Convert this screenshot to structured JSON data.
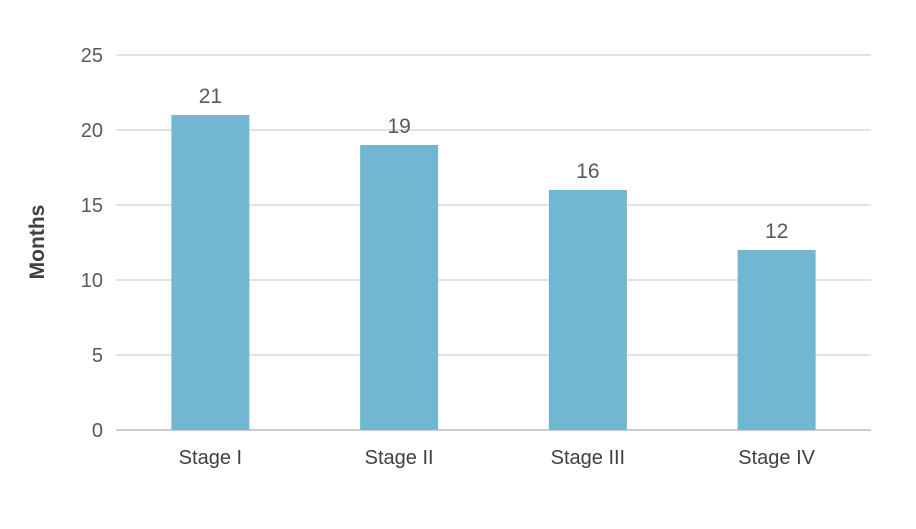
{
  "chart_data": {
    "type": "bar",
    "categories": [
      "Stage I",
      "Stage II",
      "Stage III",
      "Stage IV"
    ],
    "values": [
      21,
      19,
      16,
      12
    ],
    "data_labels": [
      "21",
      "19",
      "16",
      "12"
    ],
    "y_ticks": [
      "0",
      "5",
      "10",
      "15",
      "20",
      "25"
    ],
    "ylim": [
      0,
      25
    ],
    "ylabel": "Months",
    "xlabel": "",
    "title": "",
    "grid": true,
    "legend": "none",
    "bar_color": "#72b7d1"
  }
}
